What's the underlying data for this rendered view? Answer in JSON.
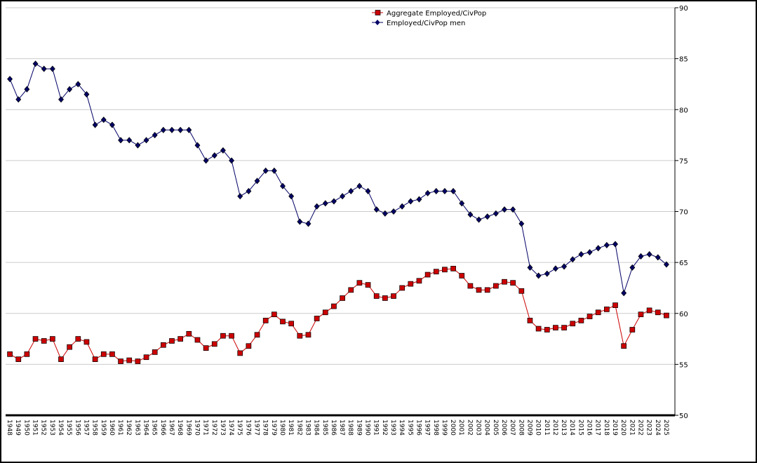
{
  "chart_data": {
    "type": "line",
    "categories": [
      "1948",
      "1949",
      "1950",
      "1951",
      "1952",
      "1953",
      "1954",
      "1955",
      "1956",
      "1957",
      "1958",
      "1959",
      "1960",
      "1961",
      "1962",
      "1963",
      "1964",
      "1965",
      "1966",
      "1967",
      "1968",
      "1969",
      "1970",
      "1971",
      "1972",
      "1973",
      "1974",
      "1975",
      "1976",
      "1977",
      "1978",
      "1979",
      "1980",
      "1981",
      "1982",
      "1983",
      "1984",
      "1985",
      "1986",
      "1987",
      "1988",
      "1989",
      "1990",
      "1991",
      "1992",
      "1993",
      "1994",
      "1995",
      "1996",
      "1997",
      "1998",
      "1999",
      "2000",
      "2001",
      "2002",
      "2003",
      "2004",
      "2005",
      "2006",
      "2007",
      "2008",
      "2009",
      "2010",
      "2011",
      "2012",
      "2013",
      "2014",
      "2015",
      "2016",
      "2017",
      "2018",
      "2019",
      "2020",
      "2021",
      "2022",
      "2023",
      "2024",
      "2025"
    ],
    "series": [
      {
        "name": "Aggregate Employed/CivPop",
        "color": "#cc0000",
        "marker": "square",
        "values": [
          56,
          55.5,
          56,
          57.5,
          57.3,
          57.5,
          55.5,
          56.7,
          57.5,
          57.2,
          55.5,
          56,
          56,
          55.3,
          55.4,
          55.3,
          55.7,
          56.2,
          56.9,
          57.3,
          57.5,
          58,
          57.4,
          56.6,
          57,
          57.8,
          57.8,
          56.1,
          56.8,
          57.9,
          59.3,
          59.9,
          59.2,
          59,
          57.8,
          57.9,
          59.5,
          60.1,
          60.7,
          61.5,
          62.3,
          63,
          62.8,
          61.7,
          61.5,
          61.7,
          62.5,
          62.9,
          63.2,
          63.8,
          64.1,
          64.3,
          64.4,
          63.7,
          62.7,
          62.3,
          62.3,
          62.7,
          63.1,
          63,
          62.2,
          59.3,
          58.5,
          58.4,
          58.6,
          58.6,
          59,
          59.3,
          59.7,
          60.1,
          60.4,
          60.8,
          56.8,
          58.4,
          59.9,
          60.3,
          60.1,
          59.8
        ]
      },
      {
        "name": "Employed/CivPop men",
        "color": "#000066",
        "marker": "diamond",
        "values": [
          83,
          81,
          82,
          84.5,
          84,
          84,
          81,
          82,
          82.5,
          81.5,
          78.5,
          79,
          78.5,
          77,
          77,
          76.5,
          77,
          77.5,
          78,
          78,
          78,
          78,
          76.5,
          75,
          75.5,
          76,
          75,
          71.5,
          72,
          73,
          74,
          74,
          72.5,
          71.5,
          69,
          68.8,
          70.5,
          70.8,
          71,
          71.5,
          72,
          72.5,
          72,
          70.2,
          69.8,
          70,
          70.5,
          71,
          71.2,
          71.8,
          72,
          72,
          72,
          70.8,
          69.7,
          69.2,
          69.5,
          69.8,
          70.2,
          70.2,
          68.8,
          64.5,
          63.7,
          63.9,
          64.4,
          64.6,
          65.3,
          65.8,
          66,
          66.4,
          66.7,
          66.8,
          62,
          64.5,
          65.6,
          65.8,
          65.5,
          64.8
        ]
      }
    ],
    "ylim": [
      50,
      90
    ],
    "yticks": [
      50,
      55,
      60,
      65,
      70,
      75,
      80,
      85,
      90
    ],
    "grid": true,
    "legend": "top"
  }
}
